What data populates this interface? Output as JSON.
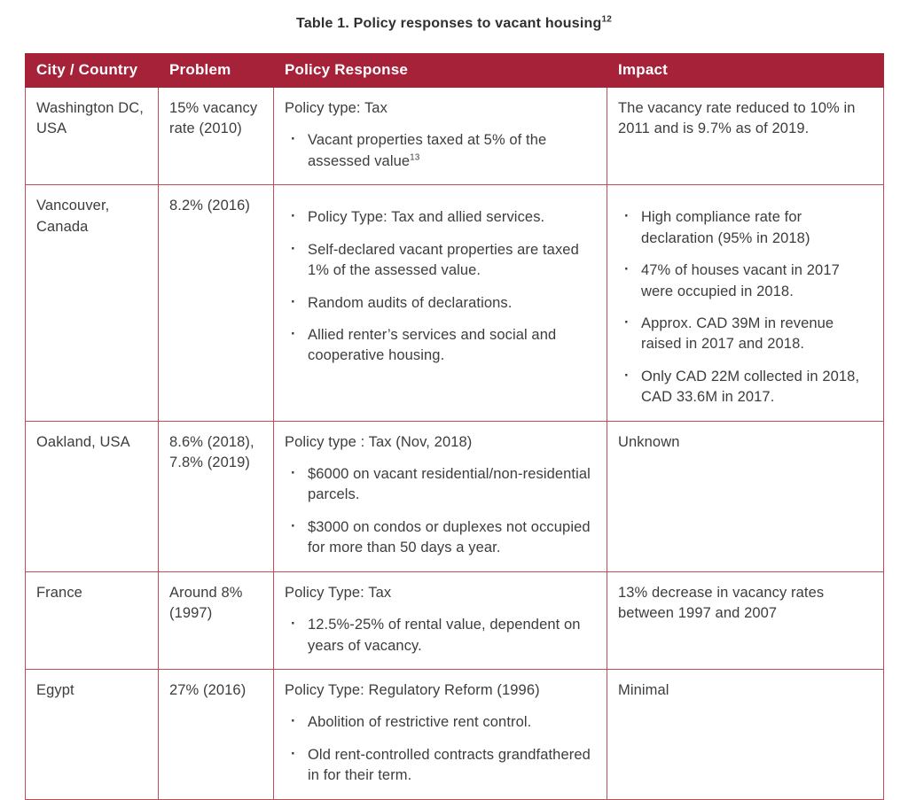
{
  "title": {
    "text": "Table 1. Policy responses to vacant housing",
    "superscript": "12"
  },
  "colors": {
    "header_bg": "#A52238",
    "grid_border": "#BE4B58",
    "header_text": "#FFFFFF",
    "body_text": "#3D3D3D"
  },
  "table": {
    "headers": [
      "City / Country",
      "Problem",
      "Policy Response",
      "Impact"
    ],
    "rows": [
      {
        "city": "Washington DC, USA",
        "problem": "15% vacancy rate (2010)",
        "policy": {
          "intro": "Policy type: Tax",
          "bullets": [
            {
              "text": "Vacant properties taxed at 5% of the assessed value",
              "sup": "13"
            }
          ]
        },
        "impact": {
          "text": "The vacancy rate reduced to 10% in 2011 and is 9.7% as of 2019."
        }
      },
      {
        "city": "Vancouver, Canada",
        "problem": "8.2% (2016)",
        "policy": {
          "bullets": [
            {
              "text": "Policy Type: Tax and allied services."
            },
            {
              "text": "Self-declared vacant properties are taxed 1% of the assessed value."
            },
            {
              "text": "Random audits of declarations."
            },
            {
              "text": "Allied renter’s services and social and cooperative housing."
            }
          ]
        },
        "impact": {
          "bullets": [
            {
              "text": "High compliance rate for declaration (95% in 2018)"
            },
            {
              "text": "47% of houses vacant in 2017 were occupied in 2018."
            },
            {
              "text": "Approx. CAD 39M in revenue raised in 2017 and 2018."
            },
            {
              "text": "Only CAD 22M collected in 2018, CAD 33.6M in 2017."
            }
          ]
        }
      },
      {
        "city": "Oakland, USA",
        "problem": "8.6% (2018), 7.8% (2019)",
        "policy": {
          "intro": "Policy type : Tax (Nov, 2018)",
          "bullets": [
            {
              "text": "$6000 on vacant residential/non-residential parcels."
            },
            {
              "text": "$3000 on condos or duplexes not occupied for more than 50 days a year."
            }
          ]
        },
        "impact": {
          "text": "Unknown"
        }
      },
      {
        "city": "France",
        "problem": "Around 8% (1997)",
        "policy": {
          "intro": "Policy Type: Tax",
          "bullets": [
            {
              "text": "12.5%-25% of rental value, dependent on years of vacancy."
            }
          ]
        },
        "impact": {
          "text": "13% decrease in vacancy rates between 1997 and 2007"
        }
      },
      {
        "city": "Egypt",
        "problem": "27% (2016)",
        "policy": {
          "intro": "Policy Type: Regulatory Reform (1996)",
          "bullets": [
            {
              "text": "Abolition of restrictive rent control."
            },
            {
              "text": "Old rent-controlled contracts grandfathered in for their term."
            }
          ]
        },
        "impact": {
          "text": "Minimal"
        }
      }
    ]
  }
}
